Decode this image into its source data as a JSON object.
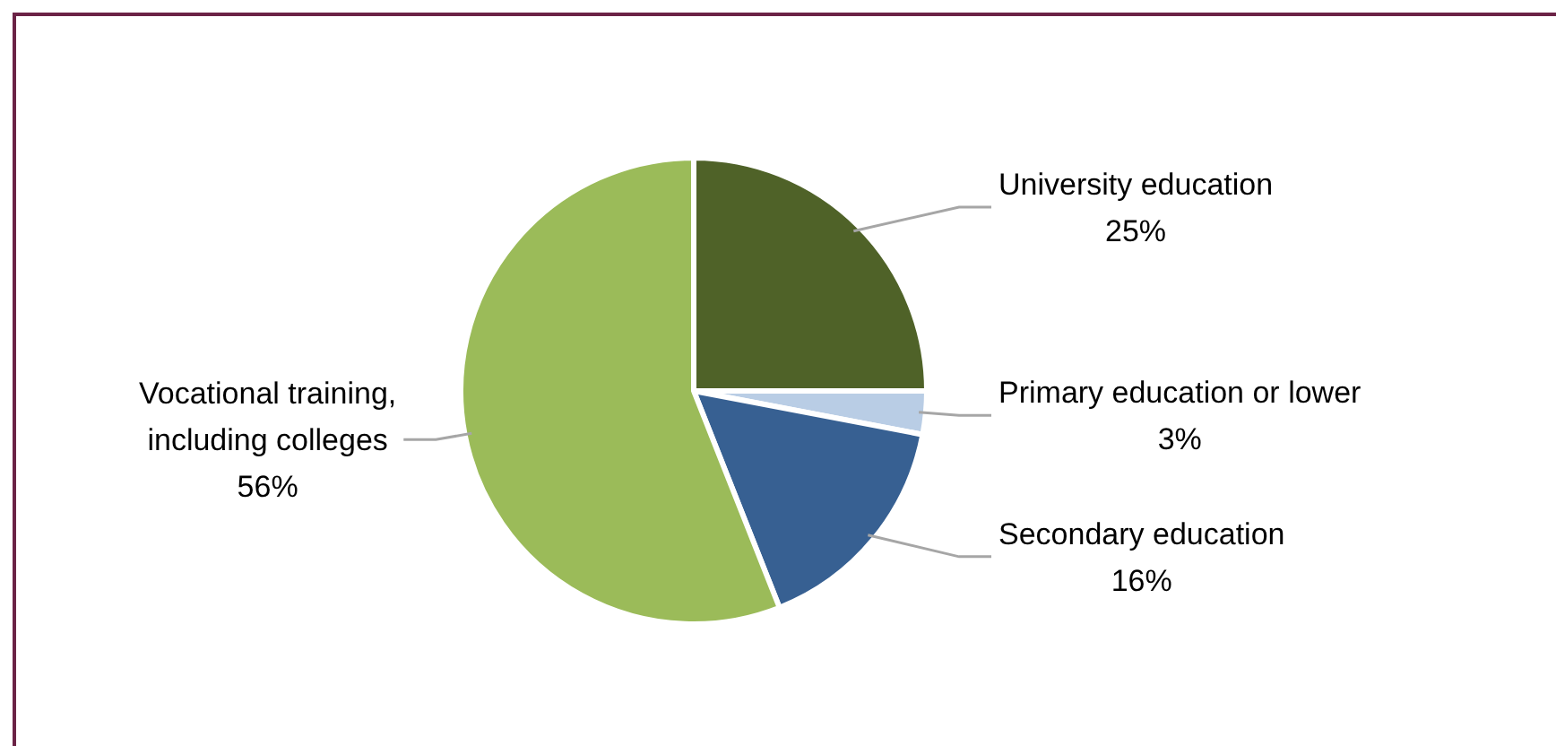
{
  "chart_data": {
    "type": "pie",
    "categories": [
      "University education",
      "Primary education or lower",
      "Secondary education",
      "Vocational training, including colleges"
    ],
    "values": [
      25,
      3,
      16,
      56
    ],
    "colors": [
      "#4f6228",
      "#b9cde5",
      "#376092",
      "#9bbb59"
    ],
    "value_labels": [
      "25%",
      "3%",
      "16%",
      "56%"
    ]
  }
}
